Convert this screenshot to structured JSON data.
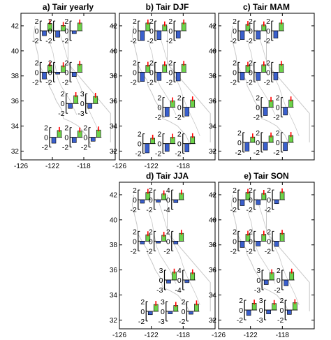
{
  "chart_data": {
    "type": "bar",
    "x_ticks": [
      "-126",
      "-122",
      "-118"
    ],
    "y_ticks": [
      "32",
      "34",
      "36",
      "38",
      "40",
      "42"
    ],
    "xlim": [
      -126,
      -114
    ],
    "ylim": [
      31.3,
      43
    ],
    "colors": {
      "series_a": "#3a5fcd",
      "series_b": "#6dd34a",
      "marker": "#ff0000",
      "coast": "#c8c8c8"
    },
    "panels": [
      {
        "title": "a) Tair yearly",
        "insets": [
          {
            "lon": -123.2,
            "lat": 41.6,
            "ticks": [
              "2",
              "0",
              "-2"
            ],
            "scale": 2,
            "values": [
              -1.0,
              1.5
            ]
          },
          {
            "lon": -121.5,
            "lat": 41.6,
            "ticks": [
              "2",
              "0",
              "-2"
            ],
            "scale": 2,
            "values": [
              -1.3,
              1.1
            ]
          },
          {
            "lon": -119.4,
            "lat": 41.6,
            "ticks": [
              "2",
              "0",
              "-2"
            ],
            "scale": 2,
            "values": [
              -0.6,
              1.6
            ]
          },
          {
            "lon": -123.2,
            "lat": 38.3,
            "ticks": [
              "2",
              "0",
              "-2"
            ],
            "scale": 2,
            "values": [
              -1.4,
              1.4
            ]
          },
          {
            "lon": -121.5,
            "lat": 38.3,
            "ticks": [
              "2",
              "0",
              "-2"
            ],
            "scale": 2,
            "values": [
              -0.4,
              1.3
            ]
          },
          {
            "lon": -119.4,
            "lat": 38.3,
            "ticks": [
              "2",
              "0",
              "-2"
            ],
            "scale": 2,
            "values": [
              -0.9,
              1.6
            ]
          },
          {
            "lon": -119.9,
            "lat": 35.8,
            "ticks": [
              "2",
              "0",
              "-2"
            ],
            "scale": 2,
            "values": [
              -1.0,
              1.6
            ]
          },
          {
            "lon": -117.4,
            "lat": 35.8,
            "ticks": [
              "3",
              "0",
              "-3"
            ],
            "scale": 3,
            "values": [
              -1.5,
              2.2
            ]
          },
          {
            "lon": -122.0,
            "lat": 33.1,
            "ticks": [
              "2",
              "0",
              "-2"
            ],
            "scale": 2,
            "values": [
              -1.2,
              1.4
            ]
          },
          {
            "lon": -119.4,
            "lat": 33.1,
            "ticks": [
              "2",
              "0",
              "-2"
            ],
            "scale": 2,
            "values": [
              -1.1,
              1.3
            ]
          },
          {
            "lon": -117.0,
            "lat": 33.1,
            "ticks": [
              "2",
              "0",
              "-2"
            ],
            "scale": 2,
            "values": [
              -0.8,
              1.5
            ]
          }
        ]
      },
      {
        "title": "b) Tair DJF",
        "insets": [
          {
            "lon": -123.3,
            "lat": 41.6,
            "ticks": [
              "2",
              "0",
              "-2"
            ],
            "scale": 2,
            "values": [
              -2.0,
              1.6
            ]
          },
          {
            "lon": -121.2,
            "lat": 41.6,
            "ticks": [
              "2",
              "0",
              "-2"
            ],
            "scale": 2,
            "values": [
              -1.8,
              1.2
            ]
          },
          {
            "lon": -118.8,
            "lat": 41.6,
            "ticks": [
              "2",
              "0",
              "-2"
            ],
            "scale": 2,
            "values": [
              -1.5,
              1.6
            ]
          },
          {
            "lon": -123.3,
            "lat": 38.3,
            "ticks": [
              "2",
              "0",
              "-2"
            ],
            "scale": 2,
            "values": [
              -1.9,
              1.4
            ]
          },
          {
            "lon": -121.2,
            "lat": 38.3,
            "ticks": [
              "2",
              "0",
              "-2"
            ],
            "scale": 2,
            "values": [
              -1.7,
              1.5
            ]
          },
          {
            "lon": -118.8,
            "lat": 38.3,
            "ticks": [
              "2",
              "0",
              "-2"
            ],
            "scale": 2,
            "values": [
              -1.8,
              1.6
            ]
          },
          {
            "lon": -120.2,
            "lat": 35.5,
            "ticks": [
              "2",
              "0",
              "-2"
            ],
            "scale": 2,
            "values": [
              -1.9,
              1.3
            ]
          },
          {
            "lon": -117.7,
            "lat": 35.5,
            "ticks": [
              "2",
              "0",
              "-2"
            ],
            "scale": 2,
            "values": [
              -1.8,
              1.5
            ]
          },
          {
            "lon": -122.7,
            "lat": 32.6,
            "ticks": [
              "2",
              "0",
              "-2"
            ],
            "scale": 2,
            "values": [
              -1.9,
              1.1
            ]
          },
          {
            "lon": -120.2,
            "lat": 32.6,
            "ticks": [
              "2",
              "0",
              "-2"
            ],
            "scale": 2,
            "values": [
              -1.6,
              1.3
            ]
          },
          {
            "lon": -117.7,
            "lat": 32.6,
            "ticks": [
              "2",
              "0",
              "-2"
            ],
            "scale": 2,
            "values": [
              -1.7,
              1.4
            ]
          }
        ]
      },
      {
        "title": "c) Tair MAM",
        "insets": [
          {
            "lon": -123.2,
            "lat": 41.6,
            "ticks": [
              "2",
              "0",
              "-2"
            ],
            "scale": 2,
            "values": [
              -1.8,
              1.3
            ]
          },
          {
            "lon": -121.2,
            "lat": 41.6,
            "ticks": [
              "2",
              "0",
              "-2"
            ],
            "scale": 2,
            "values": [
              -1.7,
              1.2
            ]
          },
          {
            "lon": -119.0,
            "lat": 41.6,
            "ticks": [
              "2",
              "0",
              "-2"
            ],
            "scale": 2,
            "values": [
              -1.5,
              1.6
            ]
          },
          {
            "lon": -123.2,
            "lat": 38.3,
            "ticks": [
              "2",
              "0",
              "-2"
            ],
            "scale": 2,
            "values": [
              -1.6,
              1.4
            ]
          },
          {
            "lon": -121.2,
            "lat": 38.3,
            "ticks": [
              "2",
              "0",
              "-2"
            ],
            "scale": 2,
            "values": [
              -1.7,
              1.5
            ]
          },
          {
            "lon": -119.0,
            "lat": 38.3,
            "ticks": [
              "2",
              "0",
              "-2"
            ],
            "scale": 2,
            "values": [
              -1.6,
              1.6
            ]
          },
          {
            "lon": -120.3,
            "lat": 35.5,
            "ticks": [
              "2",
              "0",
              "-2"
            ],
            "scale": 2,
            "values": [
              -1.7,
              1.4
            ]
          },
          {
            "lon": -117.8,
            "lat": 35.5,
            "ticks": [
              "2",
              "0",
              "-2"
            ],
            "scale": 2,
            "values": [
              -1.6,
              1.5
            ]
          },
          {
            "lon": -122.6,
            "lat": 32.7,
            "ticks": [
              "2",
              "0",
              "-2"
            ],
            "scale": 2,
            "values": [
              -1.8,
              1.1
            ]
          },
          {
            "lon": -120.3,
            "lat": 32.7,
            "ticks": [
              "2",
              "0",
              "-2"
            ],
            "scale": 2,
            "values": [
              -1.6,
              1.3
            ]
          },
          {
            "lon": -117.8,
            "lat": 32.7,
            "ticks": [
              "2",
              "0",
              "-2"
            ],
            "scale": 2,
            "values": [
              -1.7,
              1.4
            ]
          }
        ]
      },
      {
        "title": "d) Tair JJA",
        "insets": [
          {
            "lon": -123.3,
            "lat": 41.6,
            "ticks": [
              "2",
              "0",
              "-2"
            ],
            "scale": 2,
            "values": [
              -0.7,
              1.5
            ]
          },
          {
            "lon": -121.3,
            "lat": 41.6,
            "ticks": [
              "2",
              "0",
              "-2"
            ],
            "scale": 2,
            "values": [
              -0.5,
              1.2
            ]
          },
          {
            "lon": -119.1,
            "lat": 41.6,
            "ticks": [
              "4",
              "0",
              "-4"
            ],
            "scale": 4,
            "values": [
              -1.2,
              2.7
            ]
          },
          {
            "lon": -123.3,
            "lat": 38.3,
            "ticks": [
              "2",
              "0",
              "-2"
            ],
            "scale": 2,
            "values": [
              -0.6,
              1.3
            ]
          },
          {
            "lon": -121.3,
            "lat": 38.3,
            "ticks": [
              "2",
              "0",
              "-2"
            ],
            "scale": 2,
            "values": [
              -0.4,
              1.2
            ]
          },
          {
            "lon": -119.1,
            "lat": 38.3,
            "ticks": [
              "2",
              "0",
              "-2"
            ],
            "scale": 2,
            "values": [
              -0.6,
              1.6
            ]
          },
          {
            "lon": -120.0,
            "lat": 35.2,
            "ticks": [
              "3",
              "0",
              "-3"
            ],
            "scale": 3,
            "values": [
              -1.0,
              2.4
            ]
          },
          {
            "lon": -117.7,
            "lat": 35.2,
            "ticks": [
              "4",
              "0",
              "-4"
            ],
            "scale": 4,
            "values": [
              -1.1,
              2.9
            ]
          },
          {
            "lon": -122.3,
            "lat": 32.7,
            "ticks": [
              "2",
              "0",
              "-2"
            ],
            "scale": 2,
            "values": [
              -0.7,
              1.4
            ]
          },
          {
            "lon": -119.8,
            "lat": 32.7,
            "ticks": [
              "3",
              "0",
              "-3"
            ],
            "scale": 3,
            "values": [
              -0.8,
              1.8
            ]
          },
          {
            "lon": -117.2,
            "lat": 32.7,
            "ticks": [
              "2",
              "0",
              "-2"
            ],
            "scale": 2,
            "values": [
              -0.6,
              1.5
            ]
          }
        ]
      },
      {
        "title": "e) Tair SON",
        "insets": [
          {
            "lon": -123.2,
            "lat": 41.6,
            "ticks": [
              "2",
              "0",
              "-2"
            ],
            "scale": 2,
            "values": [
              -1.2,
              1.5
            ]
          },
          {
            "lon": -121.2,
            "lat": 41.6,
            "ticks": [
              "2",
              "0",
              "-2"
            ],
            "scale": 2,
            "values": [
              -1.0,
              1.3
            ]
          },
          {
            "lon": -118.9,
            "lat": 41.6,
            "ticks": [
              "2",
              "0",
              "-2"
            ],
            "scale": 2,
            "values": [
              -0.8,
              1.6
            ]
          },
          {
            "lon": -123.2,
            "lat": 38.3,
            "ticks": [
              "2",
              "0",
              "-2"
            ],
            "scale": 2,
            "values": [
              -1.3,
              1.4
            ]
          },
          {
            "lon": -121.2,
            "lat": 38.3,
            "ticks": [
              "2",
              "0",
              "-2"
            ],
            "scale": 2,
            "values": [
              -1.0,
              1.4
            ]
          },
          {
            "lon": -118.9,
            "lat": 38.3,
            "ticks": [
              "2",
              "0",
              "-2"
            ],
            "scale": 2,
            "values": [
              -1.1,
              1.6
            ]
          },
          {
            "lon": -120.2,
            "lat": 35.2,
            "ticks": [
              "3",
              "0",
              "-3"
            ],
            "scale": 3,
            "values": [
              -1.4,
              2.2
            ]
          },
          {
            "lon": -117.7,
            "lat": 35.2,
            "ticks": [
              "2",
              "0",
              "-2"
            ],
            "scale": 2,
            "values": [
              -1.2,
              1.6
            ]
          },
          {
            "lon": -122.4,
            "lat": 32.8,
            "ticks": [
              "2",
              "0",
              "-2"
            ],
            "scale": 2,
            "values": [
              -1.1,
              1.4
            ]
          },
          {
            "lon": -119.9,
            "lat": 32.8,
            "ticks": [
              "3",
              "0",
              "-3"
            ],
            "scale": 3,
            "values": [
              -1.2,
              2.0
            ]
          },
          {
            "lon": -117.3,
            "lat": 32.8,
            "ticks": [
              "2",
              "0",
              "-2"
            ],
            "scale": 2,
            "values": [
              -0.9,
              1.5
            ]
          }
        ]
      }
    ]
  }
}
